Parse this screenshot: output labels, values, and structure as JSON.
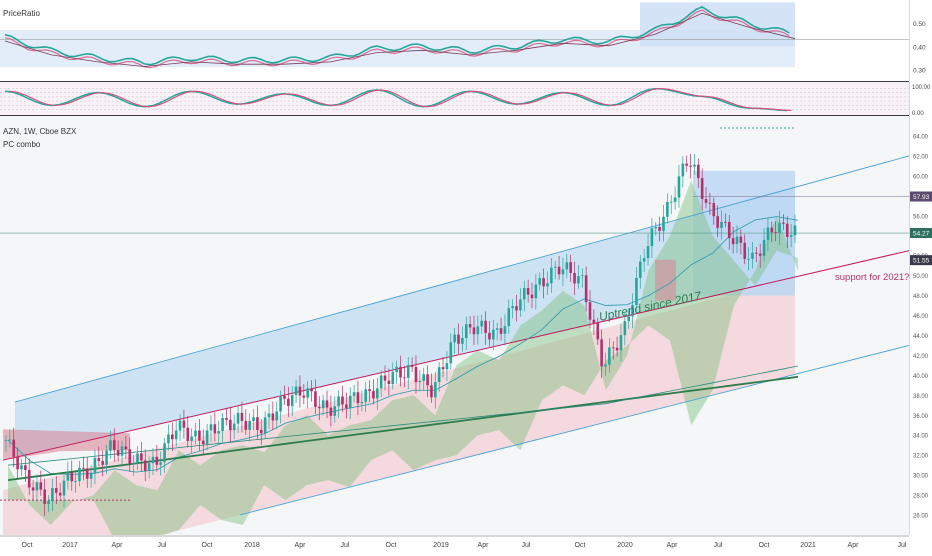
{
  "panes": {
    "price_ratio": {
      "title": "PriceRatio",
      "ticks": [
        "0.50",
        "0.40",
        "0.30"
      ]
    },
    "oscillator": {
      "title": "",
      "ticks": [
        "100.00",
        "0.00"
      ]
    },
    "main": {
      "title": "AZN, 1W, Cboe BZX",
      "subtitle": "PC combo",
      "annotation_uptrend": "Uptrend since 2017",
      "annotation_support": "support for 2021?",
      "price_tags": [
        "57.93",
        "54.27",
        "51.55"
      ]
    }
  },
  "time_axis": [
    "Oct",
    "2017",
    "Apr",
    "Jul",
    "Oct",
    "2018",
    "Apr",
    "Jul",
    "Oct",
    "2019",
    "Apr",
    "Jul",
    "Oct",
    "2020",
    "Apr",
    "Jul",
    "Oct",
    "2021",
    "Apr",
    "Jul"
  ],
  "colors": {
    "up": "#26a69a",
    "down": "#b5306a",
    "blue_band": "#bfdcf3",
    "green_zone": "#7fbf7f",
    "red_zone": "#f2c2c8",
    "trend_line": "#4aa3d4",
    "support_line": "#c2185b",
    "tag": "#5a4a6e"
  },
  "chart_data": [
    {
      "type": "line",
      "title": "PriceRatio",
      "x": [
        "Oct",
        "2017",
        "Apr",
        "Jul",
        "Oct",
        "2018",
        "Apr",
        "Jul",
        "Oct",
        "2019",
        "Apr",
        "Jul",
        "Oct",
        "2020",
        "Apr",
        "Jul",
        "Oct",
        "2021"
      ],
      "ylim": [
        0.25,
        0.6
      ],
      "series": [
        {
          "values": [
            0.44,
            0.38,
            0.35,
            0.33,
            0.35,
            0.34,
            0.34,
            0.35,
            0.39,
            0.4,
            0.38,
            0.4,
            0.43,
            0.42,
            0.47,
            0.56,
            0.5,
            0.45
          ]
        }
      ]
    },
    {
      "type": "line",
      "ylim": [
        0,
        100
      ],
      "series": [
        {
          "values": [
            80,
            25,
            75,
            20,
            80,
            30,
            70,
            25,
            85,
            20,
            80,
            30,
            75,
            25,
            90,
            60,
            15,
            5
          ]
        }
      ]
    },
    {
      "type": "candlestick",
      "title": "AZN, 1W, Cboe BZX",
      "subtitle": "PC combo",
      "x": [
        "Oct",
        "2017",
        "Apr",
        "Jul",
        "Oct",
        "2018",
        "Apr",
        "Jul",
        "Oct",
        "2019",
        "Apr",
        "Jul",
        "Oct",
        "2020",
        "Apr",
        "Jul",
        "Oct",
        "2021",
        "Apr",
        "Jul"
      ],
      "ylim": [
        24,
        66
      ],
      "y_ticks": [
        26,
        28,
        30,
        32,
        34,
        36,
        38,
        40,
        42,
        44,
        46,
        48,
        50,
        52,
        54,
        56,
        58,
        60,
        62,
        64
      ],
      "close_path": [
        33.5,
        29.5,
        27.5,
        29.8,
        30.5,
        33.0,
        31.5,
        31.0,
        35.0,
        33.5,
        35.0,
        35.5,
        34.8,
        37.5,
        38.5,
        36.5,
        37.5,
        38.0,
        40.0,
        40.5,
        38.5,
        43.5,
        45.0,
        44.0,
        47.5,
        49.0,
        51.0,
        49.5,
        41.0,
        44.5,
        53.0,
        56.5,
        62.0,
        56.5,
        54.0,
        51.5,
        55.0,
        54.27
      ],
      "price_tags": [
        57.93,
        54.27,
        51.55
      ],
      "annotations": [
        "Uptrend since 2017",
        "support for 2021?"
      ]
    }
  ]
}
